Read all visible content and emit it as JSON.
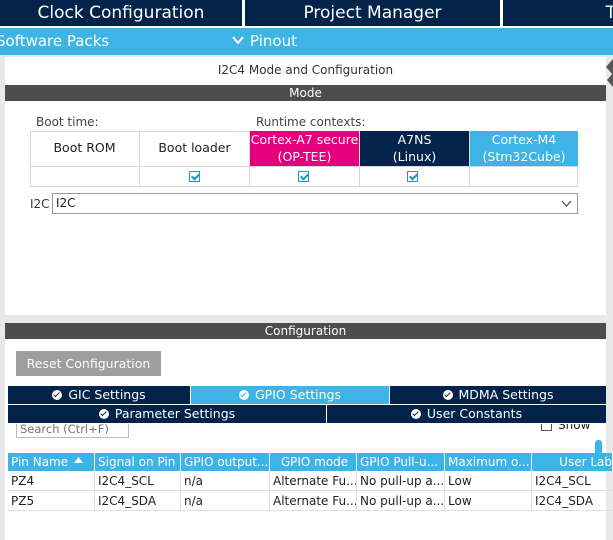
{
  "top_tabs": [
    "Clock Configuration",
    "Project Manager",
    "T"
  ],
  "sub_tabs": {
    "software_packs": "Software Packs",
    "pinout": "Pinout"
  },
  "mode_panel": {
    "title": "I2C4 Mode and Configuration",
    "band": "Mode",
    "boot_time_label": "Boot time:",
    "runtime_label": "Runtime contexts:",
    "contexts": [
      {
        "line1": "Boot ROM",
        "line2": ""
      },
      {
        "line1": "Boot loader",
        "line2": ""
      },
      {
        "line1": "Cortex-A7 secure",
        "line2": "(OP-TEE)"
      },
      {
        "line1": "A7NS",
        "line2": "(Linux)"
      },
      {
        "line1": "Cortex-M4",
        "line2": "(Stm32Cube)"
      }
    ],
    "i2c_label": "I2C",
    "i2c_value": "I2C"
  },
  "config_panel": {
    "band": "Configuration",
    "reset_label": "Reset Configuration",
    "tabs_row1": [
      "GIC Settings",
      "GPIO Settings",
      "MDMA Settings"
    ],
    "tabs_row2": [
      "Parameter Settings",
      "User Constants"
    ],
    "search_placeholder": "Search (Ctrl+F)",
    "show_label": "Show",
    "columns": [
      "Pin Name",
      "Signal on Pin",
      "GPIO output...",
      "GPIO mode",
      "GPIO Pull-u...",
      "Maximum o...",
      "User Lab"
    ],
    "rows": [
      [
        "PZ4",
        "I2C4_SCL",
        "n/a",
        "Alternate Fu...",
        "No pull-up a...",
        "Low",
        "I2C4_SCL"
      ],
      [
        "PZ5",
        "I2C4_SDA",
        "n/a",
        "Alternate Fu...",
        "No pull-up a...",
        "Low",
        "I2C4_SDA"
      ]
    ]
  },
  "colors": {
    "navy": "#03234b",
    "cyan": "#3cb4e6",
    "magenta": "#e6007e",
    "band_grey": "#4d4d4d"
  }
}
